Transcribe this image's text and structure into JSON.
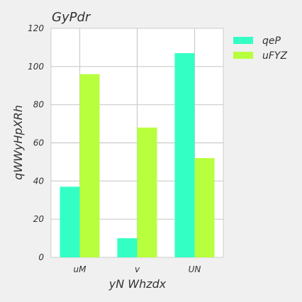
{
  "chart_data": {
    "type": "bar",
    "title": "GyPdr",
    "xlabel": "yN  Whzdx",
    "ylabel": "qWWyHpXRh",
    "categories": [
      "uM",
      "v",
      "UN"
    ],
    "series": [
      {
        "name": "qeP",
        "values": [
          37,
          10,
          107
        ],
        "color": "#33ffc4"
      },
      {
        "name": "uFYZ",
        "values": [
          96,
          68,
          52
        ],
        "color": "#b8ff3d"
      }
    ],
    "ylim": [
      0,
      120
    ],
    "yticks": [
      0,
      20,
      40,
      60,
      80,
      100,
      120
    ],
    "grid": true,
    "legend": "top-right"
  }
}
